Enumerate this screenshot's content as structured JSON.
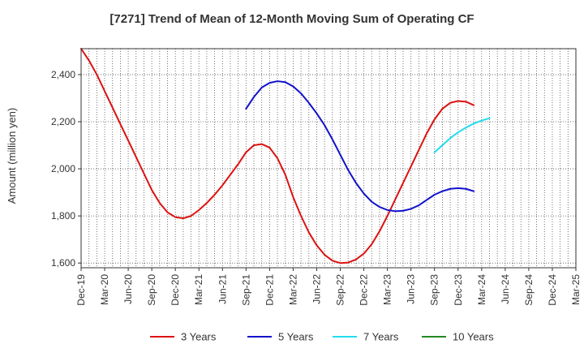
{
  "chart_data": {
    "type": "line",
    "title": "[7271]  Trend of Mean of 12-Month Moving Sum of Operating CF",
    "xlabel": "",
    "ylabel": "Amount (million yen)",
    "ylim": [
      1580,
      2510
    ],
    "yticks": [
      1600,
      1800,
      2000,
      2200,
      2400
    ],
    "ytick_labels": [
      "1,600",
      "1,800",
      "2,000",
      "2,200",
      "2,400"
    ],
    "xtick_labels": [
      "Dec-19",
      "Mar-20",
      "Jun-20",
      "Sep-20",
      "Dec-20",
      "Mar-21",
      "Jun-21",
      "Sep-21",
      "Dec-21",
      "Mar-22",
      "Jun-22",
      "Sep-22",
      "Dec-22",
      "Mar-23",
      "Jun-23",
      "Sep-23",
      "Dec-23",
      "Mar-24",
      "Jun-24",
      "Sep-24",
      "Dec-24",
      "Mar-25"
    ],
    "grid": true,
    "legend_position": "bottom",
    "series": [
      {
        "name": "3 Years",
        "color": "#dd1111",
        "start_index": 0,
        "values": [
          2510,
          2460,
          2400,
          2330,
          2260,
          2190,
          2120,
          2050,
          1980,
          1910,
          1855,
          1815,
          1795,
          1790,
          1800,
          1825,
          1855,
          1890,
          1930,
          1975,
          2020,
          2070,
          2100,
          2105,
          2090,
          2045,
          1975,
          1880,
          1800,
          1730,
          1675,
          1635,
          1610,
          1600,
          1602,
          1615,
          1640,
          1680,
          1735,
          1800,
          1870,
          1940,
          2010,
          2080,
          2150,
          2210,
          2255,
          2280,
          2288,
          2285,
          2270
        ]
      },
      {
        "name": "5 Years",
        "color": "#1111cc",
        "start_index": 21,
        "values": [
          2255,
          2305,
          2345,
          2365,
          2372,
          2368,
          2350,
          2320,
          2280,
          2235,
          2185,
          2125,
          2060,
          1995,
          1940,
          1895,
          1860,
          1838,
          1825,
          1820,
          1822,
          1830,
          1845,
          1868,
          1890,
          1905,
          1915,
          1918,
          1915,
          1905
        ]
      },
      {
        "name": "7 Years",
        "color": "#22ddee",
        "start_index": 45,
        "values": [
          2070,
          2100,
          2130,
          2155,
          2175,
          2192,
          2205,
          2215
        ]
      },
      {
        "name": "10 Years",
        "color": "#228822",
        "start_index": 0,
        "values": []
      }
    ]
  }
}
